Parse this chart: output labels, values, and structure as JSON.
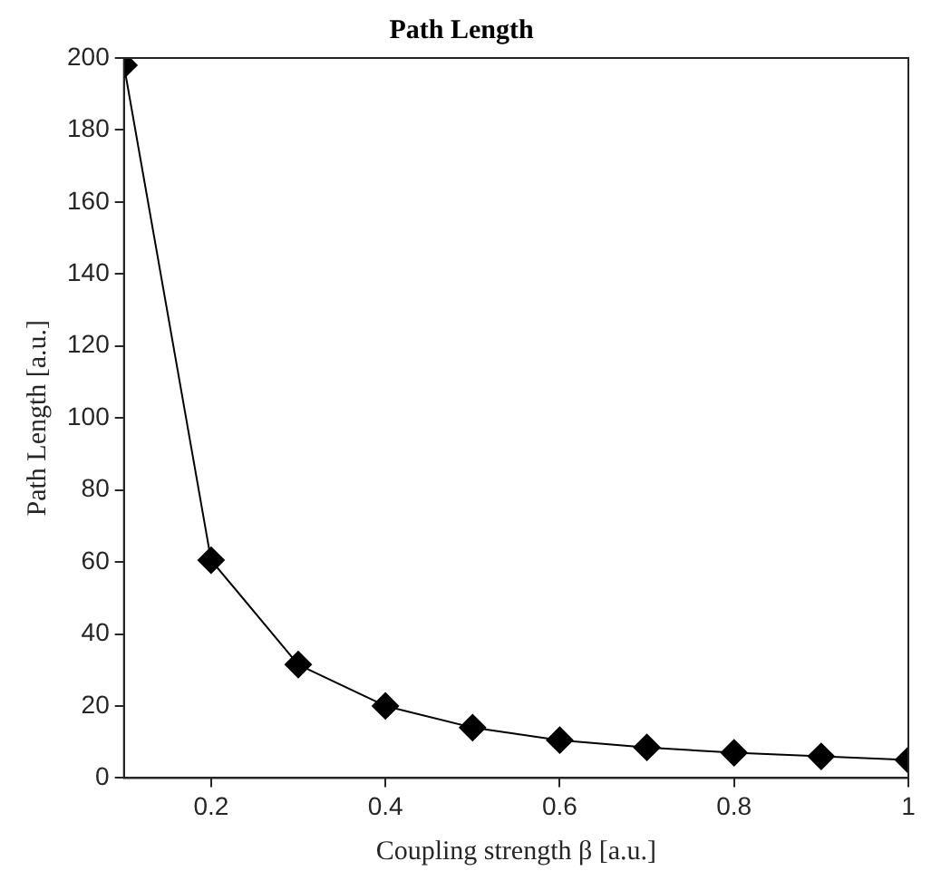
{
  "chart_data": {
    "type": "line",
    "title": "Path Length",
    "xlabel": "Coupling strength β [a.u.]",
    "ylabel": "Path Length [a.u.]",
    "x": [
      0.1,
      0.2,
      0.3,
      0.4,
      0.5,
      0.6,
      0.7,
      0.8,
      0.9,
      1.0
    ],
    "series": [
      {
        "color": "#000000",
        "values": [
          198,
          60.5,
          31.5,
          20,
          14,
          10.5,
          8.5,
          7,
          6,
          5
        ]
      }
    ],
    "xlim": [
      0.1,
      1
    ],
    "xticks": [
      {
        "value": 0.2,
        "label": "0.2"
      },
      {
        "value": 0.4,
        "label": "0.4"
      },
      {
        "value": 0.6,
        "label": "0.6"
      },
      {
        "value": 0.8,
        "label": "0.8"
      },
      1
    ],
    "ylim": [
      0,
      200
    ],
    "yticks": [
      0,
      20,
      40,
      60,
      80,
      100,
      120,
      140,
      160,
      180,
      200
    ],
    "grid": false,
    "legend": false,
    "marker": "diamond",
    "line_style": "solid"
  }
}
